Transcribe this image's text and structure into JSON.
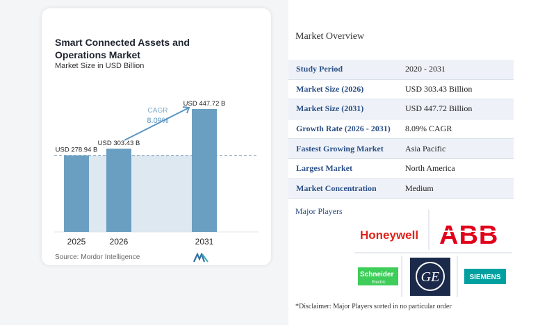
{
  "chart": {
    "title": "Smart Connected Assets and Operations Market",
    "subtitle": "Market Size in USD Billion",
    "source": "Source: Mordor Intelligence",
    "cagr_label": "CAGR",
    "cagr_value": "8.09%"
  },
  "chart_data": {
    "type": "bar",
    "categories": [
      "2025",
      "2026",
      "2031"
    ],
    "values": [
      278.94,
      303.43,
      447.72
    ],
    "data_labels": [
      "USD 278.94 B",
      "USD 303.43 B",
      "USD 447.72 B"
    ],
    "title": "Smart Connected Assets and Operations Market",
    "subtitle": "Market Size in USD Billion",
    "xlabel": "",
    "ylabel": "",
    "ylim": [
      0,
      460
    ],
    "annotation": {
      "text": "CAGR",
      "value": "8.09%"
    },
    "colors": {
      "bar": "#6b9fc2",
      "shade": "#dde8f1",
      "arrow": "#5a97c4",
      "cagr_text": "#5a97c4"
    }
  },
  "overview": {
    "title": "Market Overview",
    "rows": [
      {
        "label": "Study Period",
        "value": "2020 - 2031"
      },
      {
        "label": "Market Size (2026)",
        "value": "USD 303.43 Billion"
      },
      {
        "label": "Market Size (2031)",
        "value": "USD 447.72 Billion"
      },
      {
        "label": "Growth Rate (2026 - 2031)",
        "value": "8.09% CAGR"
      },
      {
        "label": "Fastest Growing Market",
        "value": "Asia Pacific"
      },
      {
        "label": "Largest Market",
        "value": "North America"
      },
      {
        "label": "Market Concentration",
        "value": "Medium"
      }
    ],
    "players_label": "Major Players",
    "players": {
      "honeywell": "Honeywell",
      "abb": "ABB",
      "schneider_1": "Schneider",
      "schneider_2": "Electric",
      "ge": "GE",
      "siemens": "SIEMENS"
    },
    "disclaimer": "*Disclaimer: Major Players sorted in no particular order"
  },
  "colors": {
    "accent": "#2b4f86",
    "row_alt": "#eef2f8",
    "honeywell": "#e2231a",
    "abb": "#e2001a",
    "schneider": "#3dcd58",
    "ge": "#1b2a4a",
    "siemens": "#00a0a0"
  },
  "icons": {
    "brand_logo": "mordor-intelligence-logo-icon"
  }
}
